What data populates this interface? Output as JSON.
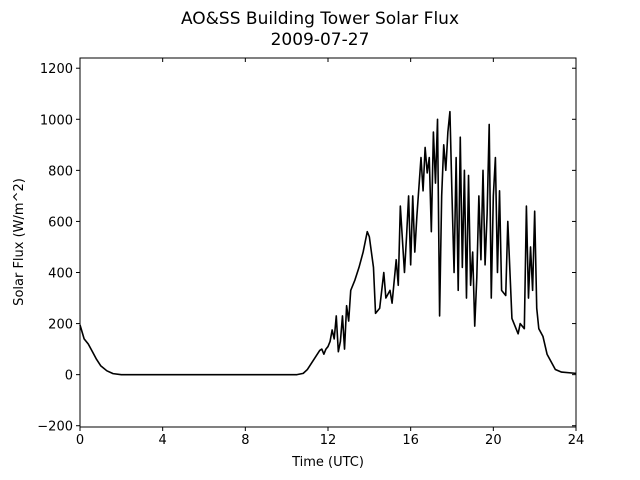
{
  "chart_data": {
    "type": "line",
    "title": "AO&SS Building Tower Solar Flux",
    "subtitle": "2009-07-27",
    "x_label": "Time (UTC)",
    "y_label": "Solar Flux (W/m^2)",
    "xlim": [
      0,
      24
    ],
    "xticks": [
      0,
      4,
      8,
      12,
      16,
      20,
      24
    ],
    "ylim": [
      -205,
      1240
    ],
    "yticks": [
      {
        "value": -200,
        "label": "−200"
      },
      0,
      200,
      400,
      600,
      800,
      1000,
      1200
    ],
    "series": [
      {
        "color": "#000000",
        "x": [
          0,
          0.2,
          0.4,
          0.6,
          0.8,
          1.0,
          1.3,
          1.6,
          2.0,
          4,
          8,
          10.5,
          10.8,
          11.0,
          11.2,
          11.4,
          11.6,
          11.7,
          11.8,
          11.9,
          12.0,
          12.1,
          12.2,
          12.3,
          12.4,
          12.5,
          12.6,
          12.7,
          12.8,
          12.9,
          13.0,
          13.1,
          13.3,
          13.5,
          13.7,
          13.9,
          14.0,
          14.1,
          14.2,
          14.3,
          14.5,
          14.7,
          14.8,
          15.0,
          15.1,
          15.3,
          15.4,
          15.5,
          15.7,
          15.8,
          15.9,
          16.0,
          16.1,
          16.2,
          16.3,
          16.5,
          16.6,
          16.7,
          16.8,
          16.9,
          17.0,
          17.1,
          17.2,
          17.3,
          17.4,
          17.5,
          17.6,
          17.7,
          17.8,
          17.9,
          18.0,
          18.1,
          18.2,
          18.3,
          18.4,
          18.5,
          18.6,
          18.7,
          18.8,
          18.9,
          19.0,
          19.1,
          19.2,
          19.3,
          19.4,
          19.5,
          19.6,
          19.7,
          19.8,
          19.9,
          20.0,
          20.1,
          20.2,
          20.3,
          20.4,
          20.6,
          20.7,
          20.9,
          21.0,
          21.2,
          21.3,
          21.5,
          21.6,
          21.7,
          21.8,
          21.9,
          22.0,
          22.1,
          22.2,
          22.4,
          22.6,
          22.8,
          23.0,
          23.3,
          24
        ],
        "values": [
          195,
          140,
          120,
          90,
          60,
          35,
          15,
          4,
          0,
          0,
          0,
          0,
          5,
          20,
          45,
          70,
          95,
          100,
          80,
          100,
          110,
          130,
          175,
          140,
          230,
          90,
          130,
          230,
          100,
          270,
          210,
          330,
          370,
          420,
          480,
          560,
          540,
          480,
          420,
          240,
          260,
          400,
          300,
          330,
          280,
          450,
          350,
          660,
          400,
          540,
          700,
          430,
          700,
          480,
          620,
          850,
          720,
          890,
          790,
          850,
          560,
          950,
          750,
          1000,
          230,
          700,
          900,
          800,
          950,
          1030,
          700,
          400,
          850,
          330,
          930,
          420,
          800,
          300,
          780,
          350,
          480,
          190,
          380,
          700,
          450,
          800,
          430,
          630,
          980,
          300,
          700,
          850,
          400,
          720,
          330,
          310,
          600,
          220,
          200,
          160,
          200,
          180,
          660,
          300,
          500,
          330,
          640,
          260,
          180,
          150,
          80,
          50,
          20,
          10,
          5
        ]
      }
    ]
  }
}
